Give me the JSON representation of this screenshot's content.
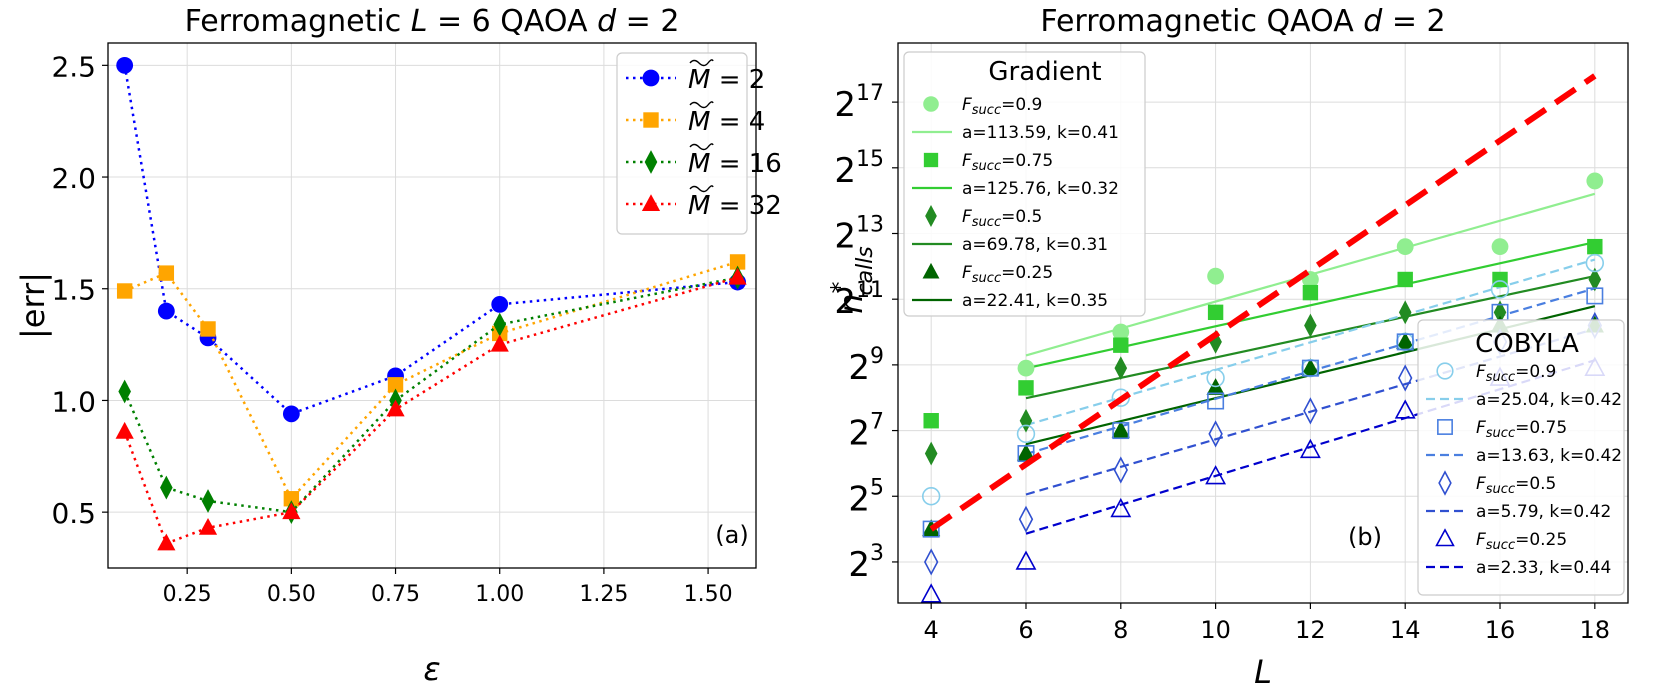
{
  "chart_data": [
    {
      "id": "a",
      "type": "line",
      "title_parts": [
        "Ferromagnetic ",
        "L",
        " = 6 QAOA ",
        "d",
        " = 2"
      ],
      "xlabel": "ε",
      "ylabel": "|err|",
      "xlim": [
        0.06,
        1.615
      ],
      "ylim": [
        0.25,
        2.6
      ],
      "xticks": [
        0.25,
        0.5,
        0.75,
        1.0,
        1.25,
        1.5
      ],
      "xtick_labels": [
        "0.25",
        "0.50",
        "0.75",
        "1.00",
        "1.25",
        "1.50"
      ],
      "yticks": [
        0.5,
        1.0,
        1.5,
        2.0,
        2.5
      ],
      "ytick_labels": [
        "0.5",
        "1.0",
        "1.5",
        "2.0",
        "2.5"
      ],
      "grid": true,
      "panel_label": "(a)",
      "legend_position": "top-right",
      "x": [
        0.1,
        0.2,
        0.3,
        0.5,
        0.75,
        1.0,
        1.5708
      ],
      "series": [
        {
          "name": "M̃ = 2",
          "legend_sym": "M",
          "legend_val": "2",
          "color": "#0000ff",
          "marker": "circle",
          "values": [
            2.5,
            1.4,
            1.28,
            0.94,
            1.11,
            1.43,
            1.53
          ]
        },
        {
          "name": "M̃ = 4",
          "legend_sym": "M",
          "legend_val": "4",
          "color": "#ffa500",
          "marker": "square",
          "values": [
            1.49,
            1.57,
            1.32,
            0.56,
            1.07,
            1.3,
            1.62
          ]
        },
        {
          "name": "M̃ = 16",
          "legend_sym": "M",
          "legend_val": "16",
          "color": "#008000",
          "marker": "diamond",
          "values": [
            1.04,
            0.61,
            0.55,
            0.5,
            1.0,
            1.34,
            1.55
          ]
        },
        {
          "name": "M̃ = 32",
          "legend_sym": "M",
          "legend_val": "32",
          "color": "#ff0000",
          "marker": "triangle",
          "values": [
            0.86,
            0.36,
            0.43,
            0.5,
            0.96,
            1.25,
            1.55
          ]
        }
      ]
    },
    {
      "id": "b",
      "type": "scatter",
      "title_parts": [
        "Ferromagnetic QAOA ",
        "d",
        " = 2"
      ],
      "xlabel": "L",
      "ylabel_parts": [
        "n",
        "*",
        "calls"
      ],
      "y_scale": "log2",
      "xlim": [
        3.3,
        18.7
      ],
      "ylim_log2": [
        1.75,
        18.8
      ],
      "xticks": [
        4,
        6,
        8,
        10,
        12,
        14,
        16,
        18
      ],
      "xtick_labels": [
        "4",
        "6",
        "8",
        "10",
        "12",
        "14",
        "16",
        "18"
      ],
      "yticks_log2": [
        3,
        5,
        7,
        9,
        11,
        13,
        15,
        17
      ],
      "ytick_labels": [
        {
          "base": "2",
          "exp": "3"
        },
        {
          "base": "2",
          "exp": "5"
        },
        {
          "base": "2",
          "exp": "7"
        },
        {
          "base": "2",
          "exp": "9"
        },
        {
          "base": "2",
          "exp": "11"
        },
        {
          "base": "2",
          "exp": "13"
        },
        {
          "base": "2",
          "exp": "15"
        },
        {
          "base": "2",
          "exp": "17"
        }
      ],
      "grid": true,
      "panel_label": "(b)",
      "reference_line": {
        "color": "#ff0000",
        "points_log2": [
          [
            4,
            4.0
          ],
          [
            18,
            17.8
          ]
        ]
      },
      "groups": [
        {
          "name": "Gradient",
          "legend_position": "top-left",
          "series": [
            {
              "F_label": "F",
              "F_sub": "succ",
              "F_val": "=0.9",
              "fit_label": "a=113.59, k=0.41",
              "a": 113.59,
              "k": 0.41,
              "color": "#90ee90",
              "marker": "circle",
              "filled": true,
              "line": "solid",
              "fit_range": [
                6,
                18
              ],
              "x": [
                6,
                8,
                10,
                12,
                14,
                16,
                18
              ],
              "values_log2": [
                8.9,
                10.0,
                11.7,
                11.6,
                12.6,
                12.6,
                14.6
              ]
            },
            {
              "F_label": "F",
              "F_sub": "succ",
              "F_val": "=0.75",
              "fit_label": "a=125.76, k=0.32",
              "a": 125.76,
              "k": 0.32,
              "color": "#32cd32",
              "marker": "square",
              "filled": true,
              "line": "solid",
              "fit_range": [
                6,
                18
              ],
              "x": [
                4,
                6,
                8,
                10,
                12,
                14,
                16,
                18
              ],
              "values_log2": [
                7.3,
                8.3,
                9.6,
                10.6,
                11.2,
                11.6,
                11.6,
                12.6
              ]
            },
            {
              "F_label": "F",
              "F_sub": "succ",
              "F_val": "=0.5",
              "fit_label": "a=69.78, k=0.31",
              "a": 69.78,
              "k": 0.31,
              "color": "#228b22",
              "marker": "diamond",
              "filled": true,
              "line": "solid",
              "fit_range": [
                6,
                18
              ],
              "x": [
                4,
                6,
                8,
                10,
                12,
                14,
                16,
                18
              ],
              "values_log2": [
                6.3,
                7.3,
                8.9,
                9.7,
                10.2,
                10.6,
                10.6,
                11.6
              ]
            },
            {
              "F_label": "F",
              "F_sub": "succ",
              "F_val": "=0.25",
              "fit_label": "a=22.41, k=0.35",
              "a": 22.41,
              "k": 0.35,
              "color": "#006400",
              "marker": "triangle",
              "filled": true,
              "line": "solid",
              "fit_range": [
                6,
                18
              ],
              "x": [
                4,
                6,
                8,
                10,
                12,
                14,
                16,
                18
              ],
              "values_log2": [
                4.0,
                6.3,
                7.0,
                8.3,
                8.9,
                9.7,
                10.2,
                10.2
              ]
            }
          ]
        },
        {
          "name": "COBYLA",
          "legend_position": "bottom-right",
          "series": [
            {
              "F_label": "F",
              "F_sub": "succ",
              "F_val": "=0.9",
              "fit_label": "a=25.04, k=0.42",
              "a": 25.04,
              "k": 0.42,
              "color": "#87ceeb",
              "marker": "circle",
              "filled": false,
              "line": "dashed",
              "fit_range": [
                6,
                18
              ],
              "x": [
                4,
                6,
                8,
                10,
                12,
                14,
                16,
                18
              ],
              "values_log2": [
                5.0,
                6.9,
                8.0,
                8.6,
                8.9,
                9.7,
                11.3,
                12.1
              ]
            },
            {
              "F_label": "F",
              "F_sub": "succ",
              "F_val": "=0.75",
              "fit_label": "a=13.63, k=0.42",
              "a": 13.63,
              "k": 0.42,
              "color": "#4a7fe0",
              "marker": "square",
              "filled": false,
              "line": "dashed",
              "fit_range": [
                6,
                18
              ],
              "x": [
                4,
                6,
                8,
                10,
                12,
                14,
                16,
                18
              ],
              "values_log2": [
                4.0,
                6.3,
                7.0,
                7.9,
                8.9,
                9.7,
                10.6,
                11.1
              ]
            },
            {
              "F_label": "F",
              "F_sub": "succ",
              "F_val": "=0.5",
              "fit_label": "a=5.79, k=0.42",
              "a": 5.79,
              "k": 0.42,
              "color": "#3050d0",
              "marker": "diamond",
              "filled": false,
              "line": "dashed",
              "fit_range": [
                6,
                18
              ],
              "x": [
                4,
                6,
                8,
                10,
                12,
                14,
                16,
                18
              ],
              "values_log2": [
                3.0,
                4.3,
                5.8,
                6.9,
                7.6,
                8.6,
                9.7,
                10.2
              ]
            },
            {
              "F_label": "F",
              "F_sub": "succ",
              "F_val": "=0.25",
              "fit_label": "a=2.33, k=0.44",
              "a": 2.33,
              "k": 0.44,
              "color": "#0000cd",
              "marker": "triangle",
              "filled": false,
              "line": "dashed",
              "fit_range": [
                6,
                18
              ],
              "x": [
                4,
                6,
                8,
                10,
                12,
                14,
                16,
                18
              ],
              "values_log2": [
                2.0,
                3.0,
                4.6,
                5.6,
                6.4,
                7.6,
                8.6,
                8.9
              ]
            }
          ]
        }
      ]
    }
  ]
}
